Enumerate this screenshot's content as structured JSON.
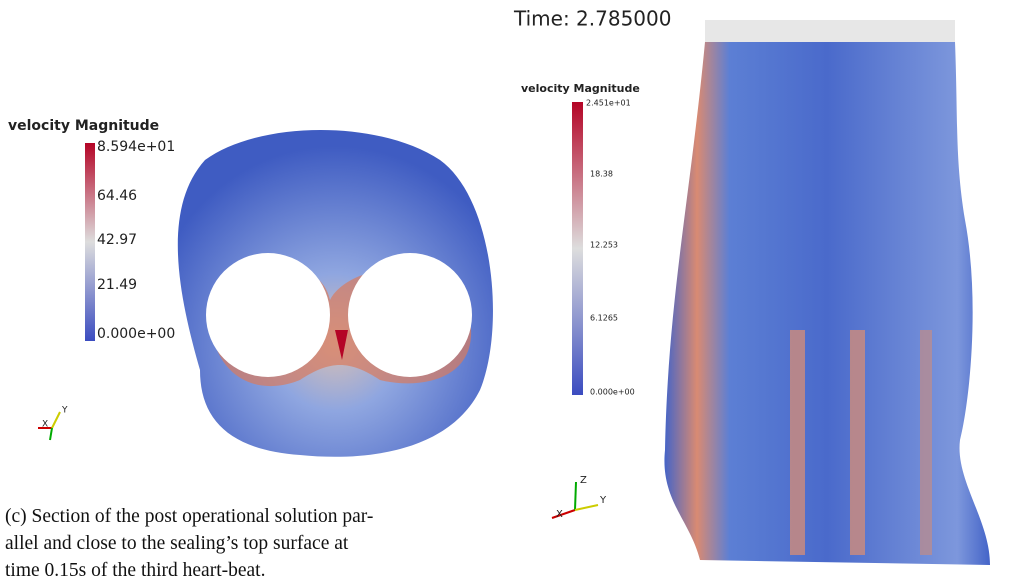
{
  "left_panel": {
    "colorbar": {
      "title": "velocity Magnitude",
      "labels": [
        "8.594e+01",
        "64.46",
        "42.97",
        "21.49",
        "0.000e+00"
      ]
    },
    "axes": [
      "X",
      "Y"
    ]
  },
  "right_panel": {
    "time": "Time: 2.785000",
    "colorbar": {
      "title": "velocity Magnitude",
      "labels": [
        "2.451e+01",
        "18.38",
        "12.253",
        "6.1265",
        "0.000e+00"
      ]
    },
    "axes": [
      "Z",
      "X",
      "Y"
    ]
  },
  "caption": {
    "lines": [
      "(c) Section of the post operational solution par-",
      "allel and close to the sealing’s top surface at",
      "time 0.15s of the third heart-beat."
    ]
  }
}
